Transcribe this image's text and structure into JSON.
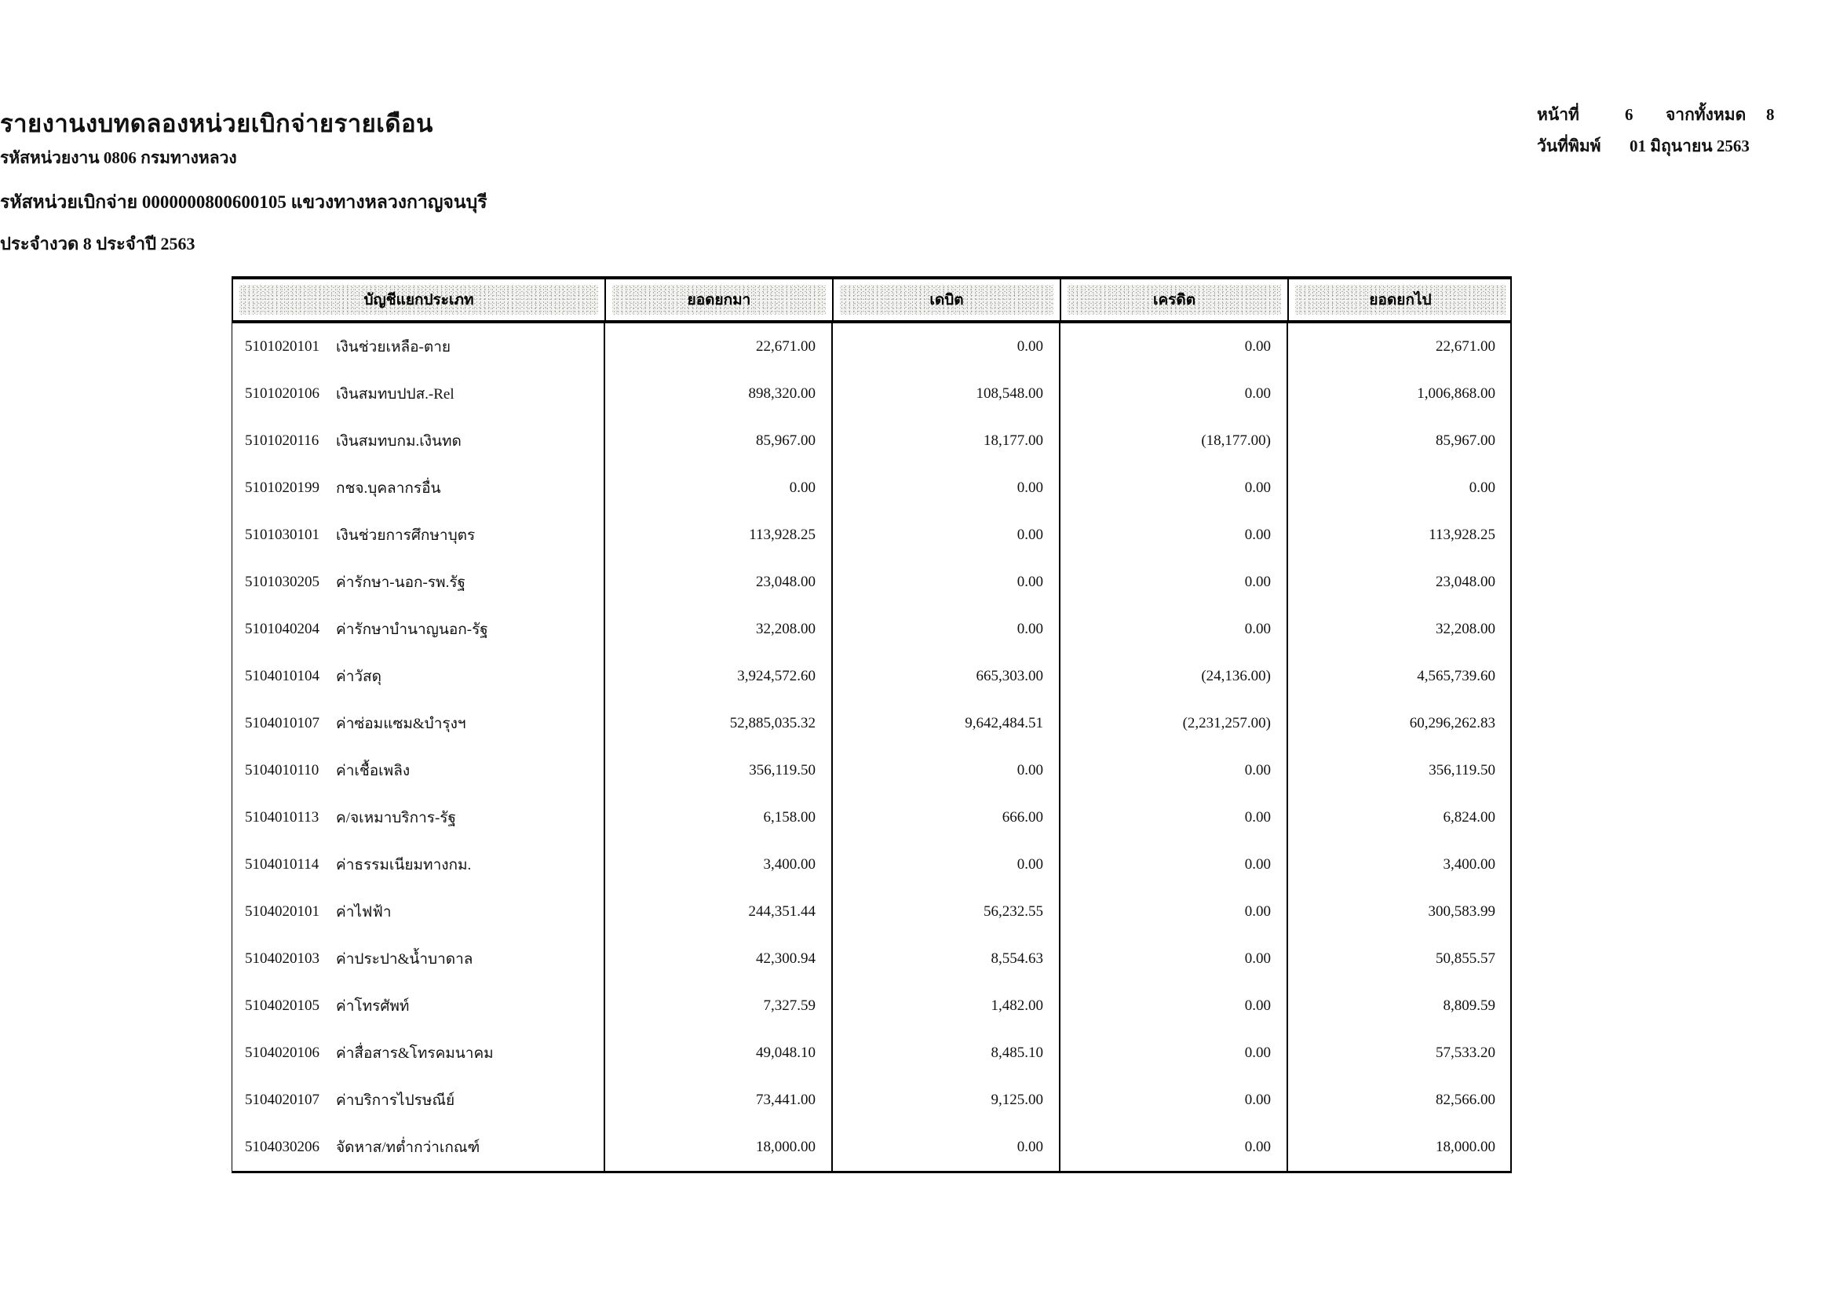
{
  "header": {
    "title": "รายงานงบทดลองหน่วยเบิกจ่ายรายเดือน",
    "agency_line": "รหัสหน่วยงาน 0806 กรมทางหลวง",
    "unit_line": "รหัสหน่วยเบิกจ่าย 0000000800600105 แขวงทางหลวงกาญจนบุรี",
    "period_line": "ประจำงวด 8 ประจำปี 2563"
  },
  "pageinfo": {
    "page_label": "หน้าที่",
    "page_number": "6",
    "of_label": "จากทั้งหมด",
    "total_pages": "8",
    "print_date_label": "วันที่พิมพ์",
    "print_date": "01 มิถุนายน 2563"
  },
  "table": {
    "headers": [
      "บัญชีแยกประเภท",
      "ยอดยกมา",
      "เดบิต",
      "เครดิต",
      "ยอดยกไป"
    ],
    "rows": [
      {
        "code": "5101020101",
        "name": "เงินช่วยเหลือ-ตาย",
        "opening": "22,671.00",
        "debit": "0.00",
        "credit": "0.00",
        "closing": "22,671.00"
      },
      {
        "code": "5101020106",
        "name": "เงินสมทบปปส.-Rel",
        "opening": "898,320.00",
        "debit": "108,548.00",
        "credit": "0.00",
        "closing": "1,006,868.00"
      },
      {
        "code": "5101020116",
        "name": "เงินสมทบกม.เงินทด",
        "opening": "85,967.00",
        "debit": "18,177.00",
        "credit": "(18,177.00)",
        "closing": "85,967.00"
      },
      {
        "code": "5101020199",
        "name": "กชจ.บุคลากรอื่น",
        "opening": "0.00",
        "debit": "0.00",
        "credit": "0.00",
        "closing": "0.00"
      },
      {
        "code": "5101030101",
        "name": "เงินช่วยการศึกษาบุตร",
        "opening": "113,928.25",
        "debit": "0.00",
        "credit": "0.00",
        "closing": "113,928.25"
      },
      {
        "code": "5101030205",
        "name": "ค่ารักษา-นอก-รพ.รัฐ",
        "opening": "23,048.00",
        "debit": "0.00",
        "credit": "0.00",
        "closing": "23,048.00"
      },
      {
        "code": "5101040204",
        "name": "ค่ารักษาบำนาญนอก-รัฐ",
        "opening": "32,208.00",
        "debit": "0.00",
        "credit": "0.00",
        "closing": "32,208.00"
      },
      {
        "code": "5104010104",
        "name": "ค่าวัสดุ",
        "opening": "3,924,572.60",
        "debit": "665,303.00",
        "credit": "(24,136.00)",
        "closing": "4,565,739.60"
      },
      {
        "code": "5104010107",
        "name": "ค่าซ่อมแซม&บำรุงฯ",
        "opening": "52,885,035.32",
        "debit": "9,642,484.51",
        "credit": "(2,231,257.00)",
        "closing": "60,296,262.83"
      },
      {
        "code": "5104010110",
        "name": "ค่าเชื้อเพลิง",
        "opening": "356,119.50",
        "debit": "0.00",
        "credit": "0.00",
        "closing": "356,119.50"
      },
      {
        "code": "5104010113",
        "name": "ค/จเหมาบริการ-รัฐ",
        "opening": "6,158.00",
        "debit": "666.00",
        "credit": "0.00",
        "closing": "6,824.00"
      },
      {
        "code": "5104010114",
        "name": "ค่าธรรมเนียมทางกม.",
        "opening": "3,400.00",
        "debit": "0.00",
        "credit": "0.00",
        "closing": "3,400.00"
      },
      {
        "code": "5104020101",
        "name": "ค่าไฟฟ้า",
        "opening": "244,351.44",
        "debit": "56,232.55",
        "credit": "0.00",
        "closing": "300,583.99"
      },
      {
        "code": "5104020103",
        "name": "ค่าประปา&น้ำบาดาล",
        "opening": "42,300.94",
        "debit": "8,554.63",
        "credit": "0.00",
        "closing": "50,855.57"
      },
      {
        "code": "5104020105",
        "name": "ค่าโทรศัพท์",
        "opening": "7,327.59",
        "debit": "1,482.00",
        "credit": "0.00",
        "closing": "8,809.59"
      },
      {
        "code": "5104020106",
        "name": "ค่าสื่อสาร&โทรคมนาคม",
        "opening": "49,048.10",
        "debit": "8,485.10",
        "credit": "0.00",
        "closing": "57,533.20"
      },
      {
        "code": "5104020107",
        "name": "ค่าบริการไปรษณีย์",
        "opening": "73,441.00",
        "debit": "9,125.00",
        "credit": "0.00",
        "closing": "82,566.00"
      },
      {
        "code": "5104030206",
        "name": "จัดหาส/ทต่ำกว่าเกณฑ์",
        "opening": "18,000.00",
        "debit": "0.00",
        "credit": "0.00",
        "closing": "18,000.00"
      }
    ]
  }
}
